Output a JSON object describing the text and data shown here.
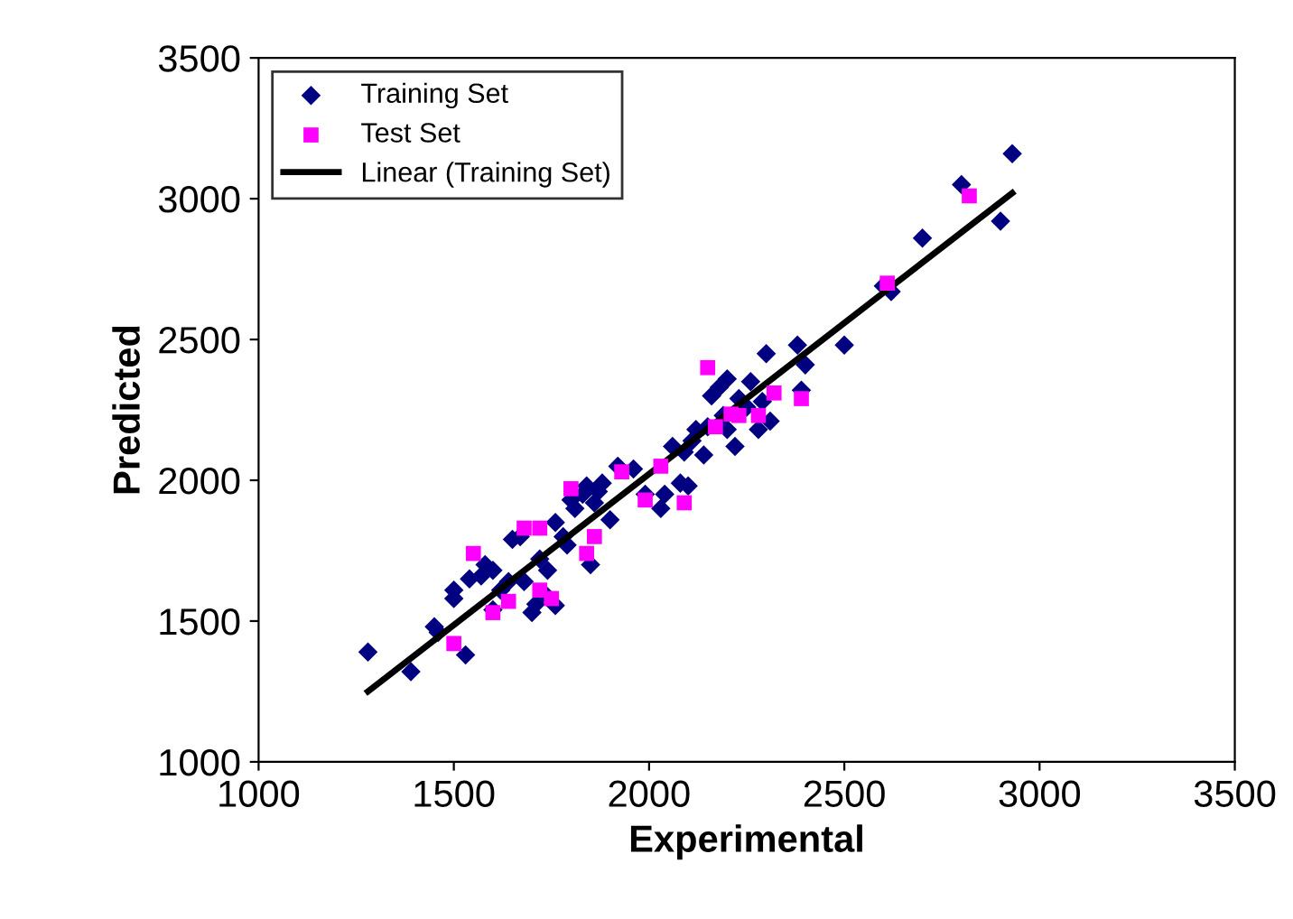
{
  "chart_data": {
    "type": "scatter",
    "xlabel": "Experimental",
    "ylabel": "Predicted",
    "xlim": [
      1000,
      3500
    ],
    "ylim": [
      1000,
      3500
    ],
    "xticks": [
      1000,
      1500,
      2000,
      2500,
      3000,
      3500
    ],
    "yticks": [
      1000,
      1500,
      2000,
      2500,
      3000,
      3500
    ],
    "grid": false,
    "legend": "top left",
    "series": [
      {
        "name": "Training Set",
        "color": "#000080",
        "marker": "diamond",
        "x": [
          1280,
          1390,
          1450,
          1460,
          1500,
          1500,
          1530,
          1540,
          1570,
          1580,
          1600,
          1600,
          1620,
          1640,
          1650,
          1670,
          1680,
          1700,
          1710,
          1720,
          1730,
          1740,
          1760,
          1760,
          1780,
          1790,
          1800,
          1810,
          1830,
          1840,
          1850,
          1860,
          1870,
          1880,
          1900,
          1920,
          1960,
          1990,
          2030,
          2040,
          2060,
          2080,
          2090,
          2100,
          2110,
          2120,
          2140,
          2150,
          2160,
          2180,
          2190,
          2200,
          2200,
          2220,
          2230,
          2250,
          2260,
          2280,
          2290,
          2300,
          2310,
          2380,
          2390,
          2400,
          2500,
          2600,
          2620,
          2700,
          2800,
          2900,
          2930
        ],
        "values": [
          1390,
          1320,
          1480,
          1460,
          1580,
          1610,
          1380,
          1650,
          1660,
          1700,
          1680,
          1540,
          1610,
          1640,
          1790,
          1800,
          1640,
          1530,
          1560,
          1720,
          1600,
          1680,
          1555,
          1850,
          1800,
          1770,
          1930,
          1900,
          1950,
          1980,
          1700,
          1920,
          1960,
          1990,
          1860,
          2050,
          2040,
          1950,
          1900,
          1950,
          2120,
          1990,
          2100,
          1980,
          2140,
          2180,
          2090,
          2190,
          2300,
          2330,
          2230,
          2360,
          2180,
          2120,
          2290,
          2260,
          2350,
          2180,
          2280,
          2450,
          2210,
          2480,
          2320,
          2410,
          2480,
          2690,
          2670,
          2860,
          3050,
          2920,
          3160
        ]
      },
      {
        "name": "Test Set",
        "color": "#ff00ff",
        "marker": "square",
        "x": [
          1500,
          1550,
          1600,
          1640,
          1680,
          1720,
          1720,
          1750,
          1800,
          1840,
          1860,
          1930,
          1990,
          2030,
          2090,
          2150,
          2170,
          2210,
          2230,
          2280,
          2320,
          2390,
          2610,
          2820
        ],
        "values": [
          1420,
          1740,
          1530,
          1570,
          1830,
          1830,
          1610,
          1580,
          1970,
          1740,
          1800,
          2030,
          1930,
          2050,
          1920,
          2400,
          2190,
          2235,
          2230,
          2230,
          2310,
          2290,
          2700,
          3010
        ]
      },
      {
        "name": "Linear (Training Set)",
        "type": "line",
        "color": "#000000",
        "marker": "none",
        "line_style": "solid",
        "x": [
          1280,
          2930
        ],
        "values": [
          1250,
          3020
        ]
      }
    ]
  }
}
